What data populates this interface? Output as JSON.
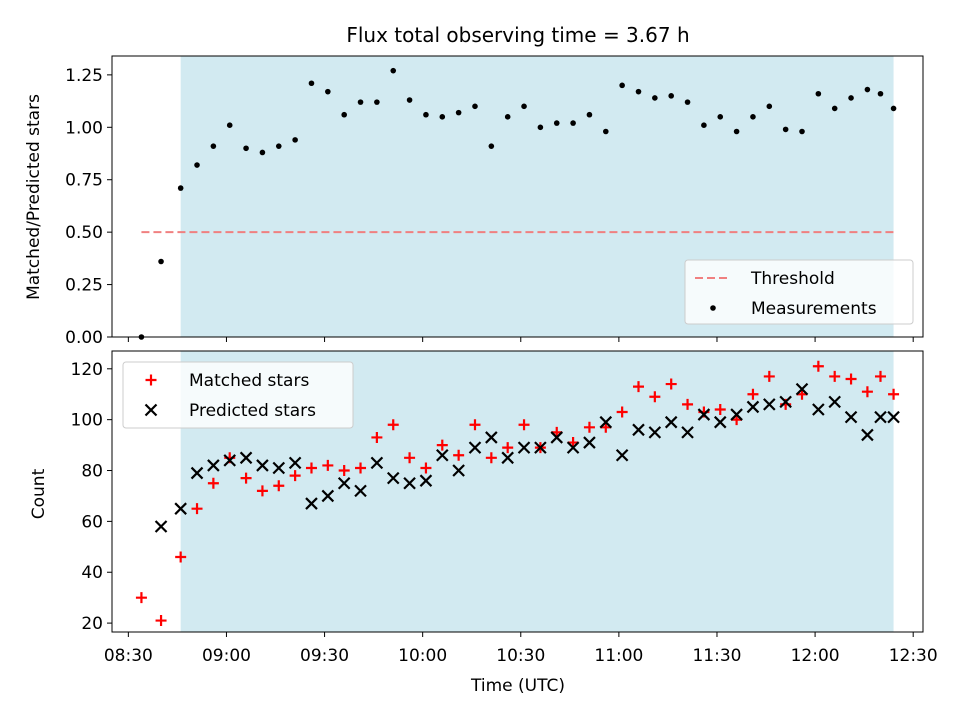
{
  "chart_data": [
    {
      "type": "scatter",
      "title": "Flux total observing time = 3.67 h",
      "xlabel": "",
      "ylabel": "Matched/Predicted stars",
      "xlim": [
        "08:25",
        "12:33"
      ],
      "ylim": [
        0,
        1.34
      ],
      "yticks": [
        "0.00",
        "0.25",
        "0.50",
        "0.75",
        "1.00",
        "1.25"
      ],
      "shaded_span": [
        "08:46",
        "12:24"
      ],
      "shade_color": "#add8e6",
      "threshold": {
        "name": "Threshold",
        "value": 0.5,
        "x_range": [
          "08:34",
          "12:24"
        ],
        "color": "#f08080"
      },
      "legend": {
        "location": "lower right",
        "entries": [
          "Threshold",
          "Measurements"
        ]
      },
      "series": [
        {
          "name": "Measurements",
          "marker": "dot",
          "color": "#000000",
          "x": [
            "08:34",
            "08:40",
            "08:46",
            "08:51",
            "08:56",
            "09:01",
            "09:06",
            "09:11",
            "09:16",
            "09:21",
            "09:26",
            "09:31",
            "09:36",
            "09:41",
            "09:46",
            "09:51",
            "09:56",
            "10:01",
            "10:06",
            "10:11",
            "10:16",
            "10:21",
            "10:26",
            "10:31",
            "10:36",
            "10:41",
            "10:46",
            "10:51",
            "10:56",
            "11:01",
            "11:06",
            "11:11",
            "11:16",
            "11:21",
            "11:26",
            "11:31",
            "11:36",
            "11:41",
            "11:46",
            "11:51",
            "11:56",
            "12:01",
            "12:06",
            "12:11",
            "12:16",
            "12:20",
            "12:24"
          ],
          "y": [
            0.0,
            0.36,
            0.71,
            0.82,
            0.91,
            1.01,
            0.9,
            0.88,
            0.91,
            0.94,
            1.21,
            1.17,
            1.06,
            1.12,
            1.12,
            1.27,
            1.13,
            1.06,
            1.05,
            1.07,
            1.1,
            0.91,
            1.05,
            1.1,
            1.0,
            1.02,
            1.02,
            1.06,
            0.98,
            1.2,
            1.17,
            1.14,
            1.15,
            1.12,
            1.01,
            1.05,
            0.98,
            1.05,
            1.1,
            0.99,
            0.98,
            1.16,
            1.09,
            1.14,
            1.18,
            1.16,
            1.09
          ]
        }
      ]
    },
    {
      "type": "scatter",
      "title": "",
      "xlabel": "Time (UTC)",
      "ylabel": "Count",
      "xlim": [
        "08:25",
        "12:33"
      ],
      "ylim": [
        16.5,
        127
      ],
      "yticks": [
        "20",
        "40",
        "60",
        "80",
        "100",
        "120"
      ],
      "xticks": [
        "08:30",
        "09:00",
        "09:30",
        "10:00",
        "10:30",
        "11:00",
        "11:30",
        "12:00",
        "12:30"
      ],
      "shaded_span": [
        "08:46",
        "12:24"
      ],
      "shade_color": "#add8e6",
      "legend": {
        "location": "upper left",
        "entries": [
          "Matched stars",
          "Predicted stars"
        ]
      },
      "series": [
        {
          "name": "Matched stars",
          "marker": "plus",
          "color": "#ff0000",
          "x": [
            "08:34",
            "08:40",
            "08:46",
            "08:51",
            "08:56",
            "09:01",
            "09:06",
            "09:11",
            "09:16",
            "09:21",
            "09:26",
            "09:31",
            "09:36",
            "09:41",
            "09:46",
            "09:51",
            "09:56",
            "10:01",
            "10:06",
            "10:11",
            "10:16",
            "10:21",
            "10:26",
            "10:31",
            "10:36",
            "10:41",
            "10:46",
            "10:51",
            "10:56",
            "11:01",
            "11:06",
            "11:11",
            "11:16",
            "11:21",
            "11:26",
            "11:31",
            "11:36",
            "11:41",
            "11:46",
            "11:51",
            "11:56",
            "12:01",
            "12:06",
            "12:11",
            "12:16",
            "12:20",
            "12:24"
          ],
          "y": [
            30,
            21,
            46,
            65,
            75,
            85,
            77,
            72,
            74,
            78,
            81,
            82,
            80,
            81,
            93,
            98,
            85,
            81,
            90,
            86,
            98,
            85,
            89,
            98,
            89,
            95,
            91,
            97,
            97,
            103,
            113,
            109,
            114,
            106,
            103,
            104,
            100,
            110,
            117,
            106,
            110,
            121,
            117,
            116,
            111,
            117,
            110
          ]
        },
        {
          "name": "Predicted stars",
          "marker": "x",
          "color": "#000000",
          "x": [
            "08:34",
            "08:40",
            "08:46",
            "08:51",
            "08:56",
            "09:01",
            "09:06",
            "09:11",
            "09:16",
            "09:21",
            "09:26",
            "09:31",
            "09:36",
            "09:41",
            "09:46",
            "09:51",
            "09:56",
            "10:01",
            "10:06",
            "10:11",
            "10:16",
            "10:21",
            "10:26",
            "10:31",
            "10:36",
            "10:41",
            "10:46",
            "10:51",
            "10:56",
            "11:01",
            "11:06",
            "11:11",
            "11:16",
            "11:21",
            "11:26",
            "11:31",
            "11:36",
            "11:41",
            "11:46",
            "11:51",
            "11:56",
            "12:01",
            "12:06",
            "12:11",
            "12:16",
            "12:20",
            "12:24"
          ],
          "y": [
            null,
            58,
            65,
            79,
            82,
            84,
            85,
            82,
            81,
            83,
            67,
            70,
            75,
            72,
            83,
            77,
            75,
            76,
            86,
            80,
            89,
            93,
            85,
            89,
            89,
            93,
            89,
            91,
            99,
            86,
            96,
            95,
            99,
            95,
            102,
            99,
            102,
            105,
            106,
            107,
            112,
            104,
            107,
            101,
            94,
            101,
            101
          ]
        }
      ]
    }
  ]
}
